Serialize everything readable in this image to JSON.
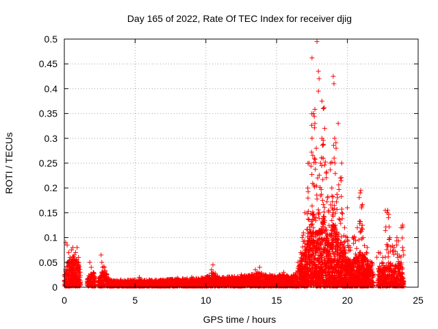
{
  "chart_data": {
    "type": "scatter",
    "title": "Day 165 of 2022, Rate Of TEC Index for receiver djig",
    "xlabel": "GPS time / hours",
    "ylabel": "ROTI / TECUs",
    "xlim": [
      0,
      25
    ],
    "ylim": [
      0,
      0.5
    ],
    "x_ticks": [
      0,
      5,
      10,
      15,
      20,
      25
    ],
    "x_tick_labels": [
      "0",
      "5",
      "10",
      "15",
      "20",
      "25"
    ],
    "y_ticks": [
      0,
      0.05,
      0.1,
      0.15,
      0.2,
      0.25,
      0.3,
      0.35,
      0.4,
      0.45,
      0.5
    ],
    "y_tick_labels": [
      "0",
      "0.05",
      "0.1",
      "0.15",
      "0.2",
      "0.25",
      "0.3",
      "0.35",
      "0.4",
      "0.45",
      "0.5"
    ],
    "grid": true,
    "marker": "+",
    "color": "#ff0000",
    "series": [
      {
        "points": [
          [
            0.1,
            0.09
          ],
          [
            0.2,
            0.085
          ],
          [
            0.3,
            0.07
          ],
          [
            0.35,
            0.05
          ],
          [
            0.4,
            0.06
          ],
          [
            0.5,
            0.075
          ],
          [
            0.6,
            0.08
          ],
          [
            0.7,
            0.065
          ],
          [
            0.8,
            0.07
          ],
          [
            0.9,
            0.08
          ],
          [
            1.0,
            0.06
          ],
          [
            1.1,
            0.02
          ],
          [
            1.8,
            0.05
          ],
          [
            1.9,
            0.04
          ],
          [
            2.6,
            0.065
          ],
          [
            2.65,
            0.05
          ],
          [
            2.7,
            0.04
          ],
          [
            3.5,
            0.012
          ],
          [
            4.0,
            0.015
          ],
          [
            4.5,
            0.01
          ],
          [
            5.3,
            0.02
          ],
          [
            6.0,
            0.015
          ],
          [
            7.0,
            0.012
          ],
          [
            8.0,
            0.018
          ],
          [
            9.0,
            0.02
          ],
          [
            10.0,
            0.02
          ],
          [
            10.4,
            0.035
          ],
          [
            10.5,
            0.045
          ],
          [
            11.5,
            0.02
          ],
          [
            12.5,
            0.025
          ],
          [
            13.5,
            0.035
          ],
          [
            13.8,
            0.04
          ],
          [
            14.5,
            0.025
          ],
          [
            15.5,
            0.03
          ],
          [
            16.0,
            0.02
          ],
          [
            16.5,
            0.05
          ],
          [
            16.7,
            0.07
          ],
          [
            16.8,
            0.1
          ],
          [
            17.0,
            0.15
          ],
          [
            17.2,
            0.2
          ],
          [
            17.3,
            0.25
          ],
          [
            17.5,
            0.3
          ],
          [
            17.6,
            0.35
          ],
          [
            17.7,
            0.33
          ],
          [
            17.8,
            0.28
          ],
          [
            17.9,
            0.22
          ],
          [
            18.0,
            0.15
          ],
          [
            18.1,
            0.25
          ],
          [
            18.2,
            0.3
          ],
          [
            18.3,
            0.36
          ],
          [
            18.4,
            0.32
          ],
          [
            18.5,
            0.23
          ],
          [
            18.6,
            0.18
          ],
          [
            18.8,
            0.25
          ],
          [
            18.9,
            0.2
          ],
          [
            19.0,
            0.15
          ],
          [
            19.1,
            0.3
          ],
          [
            19.2,
            0.28
          ],
          [
            19.3,
            0.18
          ],
          [
            19.5,
            0.22
          ],
          [
            19.6,
            0.15
          ],
          [
            19.8,
            0.12
          ],
          [
            20.0,
            0.1
          ],
          [
            20.2,
            0.08
          ],
          [
            20.5,
            0.1
          ],
          [
            20.7,
            0.12
          ],
          [
            20.9,
            0.19
          ],
          [
            21.0,
            0.16
          ],
          [
            21.1,
            0.1
          ],
          [
            21.4,
            0.08
          ],
          [
            21.7,
            0.05
          ],
          [
            22.2,
            0.07
          ],
          [
            22.5,
            0.06
          ],
          [
            22.8,
            0.15
          ],
          [
            22.9,
            0.14
          ],
          [
            23.0,
            0.1
          ],
          [
            23.3,
            0.08
          ],
          [
            23.5,
            0.1
          ],
          [
            23.8,
            0.12
          ],
          [
            23.9,
            0.08
          ]
        ]
      }
    ],
    "envelope": {
      "x": [
        0.0,
        0.3,
        0.5,
        0.8,
        1.0,
        1.2,
        1.5,
        2.0,
        2.5,
        2.8,
        3.2,
        4.0,
        5.0,
        6.0,
        7.0,
        8.0,
        9.0,
        10.0,
        10.5,
        11.0,
        12.0,
        13.0,
        13.8,
        14.5,
        15.0,
        15.5,
        16.0,
        16.4,
        16.7,
        17.0,
        17.3,
        17.5,
        17.7,
        18.0,
        18.3,
        18.5,
        18.7,
        19.0,
        19.2,
        19.5,
        19.8,
        20.0,
        20.3,
        20.6,
        20.9,
        21.2,
        21.5,
        21.8,
        22.0,
        22.3,
        22.6,
        23.0,
        23.3,
        23.6,
        23.9,
        24.0
      ],
      "y": [
        0.03,
        0.05,
        0.06,
        0.06,
        0.05,
        0.02,
        0.015,
        0.03,
        0.015,
        0.04,
        0.012,
        0.012,
        0.013,
        0.012,
        0.013,
        0.015,
        0.016,
        0.018,
        0.03,
        0.018,
        0.02,
        0.022,
        0.028,
        0.022,
        0.022,
        0.024,
        0.02,
        0.03,
        0.05,
        0.08,
        0.12,
        0.17,
        0.14,
        0.11,
        0.15,
        0.12,
        0.1,
        0.13,
        0.12,
        0.1,
        0.08,
        0.06,
        0.05,
        0.06,
        0.07,
        0.06,
        0.05,
        0.03,
        0.02,
        0.04,
        0.04,
        0.05,
        0.04,
        0.05,
        0.04,
        0.03
      ]
    },
    "peaks": [
      [
        17.5,
        0.462
      ],
      [
        17.85,
        0.495
      ],
      [
        17.95,
        0.435
      ],
      [
        18.0,
        0.42
      ],
      [
        17.95,
        0.395
      ],
      [
        18.2,
        0.375
      ],
      [
        18.3,
        0.36
      ],
      [
        19.0,
        0.425
      ],
      [
        19.05,
        0.41
      ],
      [
        19.35,
        0.33
      ],
      [
        19.6,
        0.25
      ],
      [
        20.0,
        0.16
      ],
      [
        20.95,
        0.195
      ],
      [
        21.05,
        0.125
      ],
      [
        22.85,
        0.155
      ]
    ]
  }
}
